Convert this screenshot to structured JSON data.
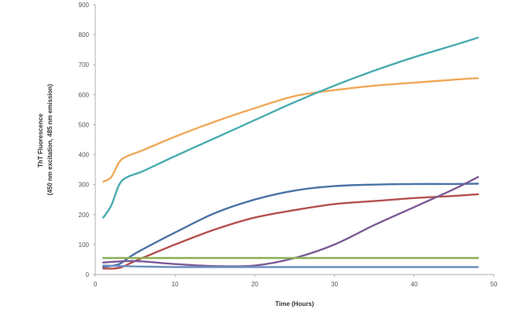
{
  "chart_data": {
    "type": "line",
    "xlabel": "Time (Hours)",
    "ylabel_lines": [
      "ThT Fluorescence",
      "(450 nm excitation, 485 nm emission)"
    ],
    "xlim": [
      0,
      50
    ],
    "ylim": [
      0,
      900
    ],
    "xticks": [
      0,
      10,
      20,
      30,
      40,
      50
    ],
    "yticks": [
      0,
      100,
      200,
      300,
      400,
      500,
      600,
      700,
      800,
      900
    ],
    "grid": false,
    "series": [
      {
        "color": "#f0a859",
        "x": [
          1,
          2,
          3,
          4,
          6,
          10,
          15,
          20,
          25,
          30,
          35,
          40,
          45,
          48
        ],
        "y": [
          310,
          325,
          375,
          395,
          415,
          460,
          510,
          555,
          595,
          615,
          630,
          640,
          650,
          655
        ]
      },
      {
        "color": "#4aacb0",
        "x": [
          1,
          2,
          3,
          4,
          6,
          10,
          15,
          20,
          25,
          30,
          35,
          40,
          45,
          48
        ],
        "y": [
          190,
          230,
          300,
          325,
          345,
          395,
          455,
          515,
          575,
          630,
          680,
          725,
          765,
          790
        ]
      },
      {
        "color": "#4a73a6",
        "x": [
          1,
          3,
          5,
          10,
          15,
          20,
          25,
          30,
          35,
          40,
          45,
          48
        ],
        "y": [
          25,
          35,
          70,
          140,
          205,
          250,
          280,
          295,
          300,
          302,
          302,
          303
        ]
      },
      {
        "color": "#b5504d",
        "x": [
          1,
          3,
          5,
          10,
          15,
          20,
          25,
          30,
          35,
          40,
          45,
          48
        ],
        "y": [
          20,
          22,
          45,
          100,
          150,
          190,
          215,
          235,
          245,
          255,
          262,
          268
        ]
      },
      {
        "color": "#7b5a96",
        "x": [
          1,
          5,
          10,
          15,
          20,
          25,
          30,
          35,
          40,
          45,
          48
        ],
        "y": [
          40,
          45,
          35,
          28,
          30,
          55,
          100,
          165,
          225,
          285,
          325
        ]
      },
      {
        "color": "#8ab055",
        "x": [
          1,
          5,
          10,
          20,
          30,
          40,
          48
        ],
        "y": [
          55,
          55,
          55,
          55,
          55,
          55,
          55
        ]
      },
      {
        "color": "#6e8fc0",
        "x": [
          1,
          5,
          10,
          20,
          30,
          40,
          48
        ],
        "y": [
          30,
          27,
          25,
          25,
          25,
          25,
          25
        ]
      }
    ]
  }
}
